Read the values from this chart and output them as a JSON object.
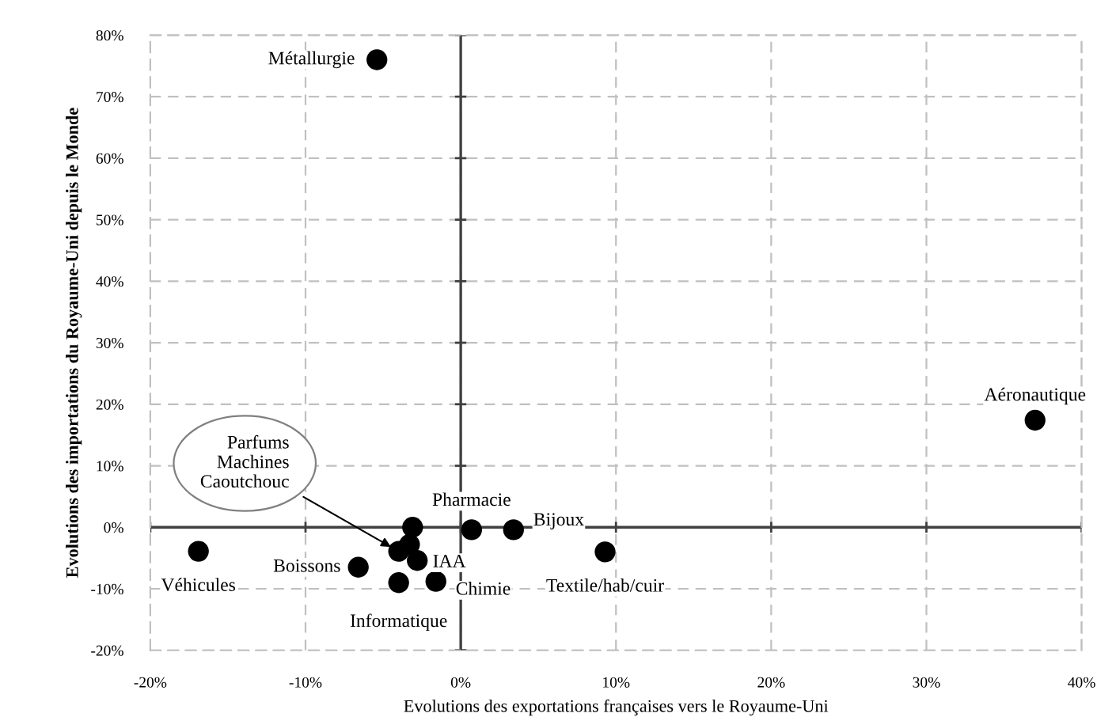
{
  "chart_data": {
    "type": "scatter",
    "xlabel": "Evolutions des exportations françaises vers le Royaume-Uni",
    "ylabel": "Evolutions des importations du Royaume-Uni depuis le Monde",
    "series": [
      {
        "color": "#000000",
        "x": [
          -5.4,
          37.0,
          -16.9,
          -6.6,
          -3.1,
          -3.3,
          -4.0,
          -2.8,
          -4.0,
          -1.6,
          0.7,
          3.4,
          9.3
        ],
        "values": [
          76,
          17.4,
          -3.9,
          -6.5,
          0,
          -2.8,
          -3.9,
          -5.4,
          -9.0,
          -8.8,
          -0.4,
          -0.4,
          -4.0
        ]
      }
    ],
    "annotations": [
      {
        "text": "Métallurgie",
        "x": -5.4,
        "y": 76
      },
      {
        "text": "Aéronautique",
        "x": 37.0,
        "y": 17.4
      },
      {
        "text": "Véhicules",
        "x": -16.9,
        "y": -3.9
      },
      {
        "text": "Boissons",
        "x": -6.6,
        "y": -6.5
      },
      {
        "text": "Parfums\nMachines\nCaoutchouc",
        "x": -4.0,
        "y": -3.9
      },
      {
        "text": "IAA",
        "x": -2.8,
        "y": -5.4
      },
      {
        "text": "Informatique",
        "x": -4.0,
        "y": -9.0
      },
      {
        "text": "Chimie",
        "x": -1.6,
        "y": -8.8
      },
      {
        "text": "Pharmacie",
        "x": 0.7,
        "y": -0.4
      },
      {
        "text": "Bijoux",
        "x": 3.4,
        "y": -0.4
      },
      {
        "text": "Textile/hab/cuir",
        "x": 9.3,
        "y": -4.0
      }
    ],
    "xlim": [
      -20,
      40
    ],
    "xticks": [
      {
        "value": -20,
        "label": "-20%"
      },
      {
        "value": -10,
        "label": "-10%"
      },
      {
        "value": 0,
        "label": "0%"
      },
      {
        "value": 10,
        "label": "10%"
      },
      {
        "value": 20,
        "label": "20%"
      },
      {
        "value": 30,
        "label": "30%"
      },
      {
        "value": 40,
        "label": "40%"
      }
    ],
    "ylim": [
      -20,
      80
    ],
    "yticks": [
      {
        "value": -20,
        "label": "-20%"
      },
      {
        "value": -10,
        "label": "-10%"
      },
      {
        "value": 0,
        "label": "0%"
      },
      {
        "value": 10,
        "label": "10%"
      },
      {
        "value": 20,
        "label": "20%"
      },
      {
        "value": 30,
        "label": "30%"
      },
      {
        "value": 40,
        "label": "40%"
      },
      {
        "value": 50,
        "label": "50%"
      },
      {
        "value": 60,
        "label": "60%"
      },
      {
        "value": 70,
        "label": "70%"
      },
      {
        "value": 80,
        "label": "80%"
      }
    ],
    "grid": true,
    "marker": "circle"
  }
}
